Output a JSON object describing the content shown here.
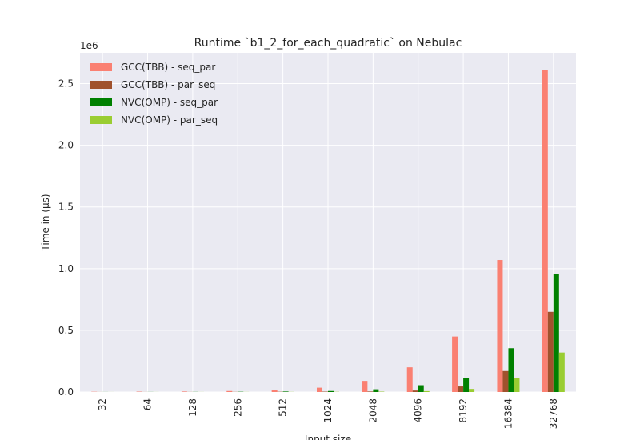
{
  "chart_data": {
    "type": "bar",
    "title": "Runtime `b1_2_for_each_quadratic` on Nebulac",
    "xlabel": "Input size",
    "ylabel": "Time in (µs)",
    "y_scale_label": "1e6",
    "categories": [
      "32",
      "64",
      "128",
      "256",
      "512",
      "1024",
      "2048",
      "4096",
      "8192",
      "16384",
      "32768"
    ],
    "ylim": [
      0,
      2750000
    ],
    "yticks": [
      0,
      500000,
      1000000,
      1500000,
      2000000,
      2500000
    ],
    "ytick_labels": [
      "0.0",
      "0.5",
      "1.0",
      "1.5",
      "2.0",
      "2.5"
    ],
    "grid": true,
    "legend_position": "top-left",
    "series": [
      {
        "name": "GCC(TBB) - seq_par",
        "color": "#fa8072",
        "values": [
          2000,
          3000,
          4000,
          8000,
          16000,
          35000,
          90000,
          200000,
          450000,
          1070000,
          2610000
        ]
      },
      {
        "name": "GCC(TBB) - par_seq",
        "color": "#a0522d",
        "values": [
          500,
          600,
          800,
          1200,
          2000,
          3000,
          4000,
          12000,
          45000,
          170000,
          650000
        ]
      },
      {
        "name": "NVC(OMP) - seq_par",
        "color": "#008000",
        "values": [
          500,
          700,
          1000,
          2000,
          4000,
          8000,
          22000,
          55000,
          115000,
          355000,
          955000
        ]
      },
      {
        "name": "NVC(OMP) - par_seq",
        "color": "#9acd32",
        "values": [
          300,
          400,
          500,
          700,
          1000,
          1500,
          3000,
          7000,
          25000,
          115000,
          320000
        ]
      }
    ]
  }
}
